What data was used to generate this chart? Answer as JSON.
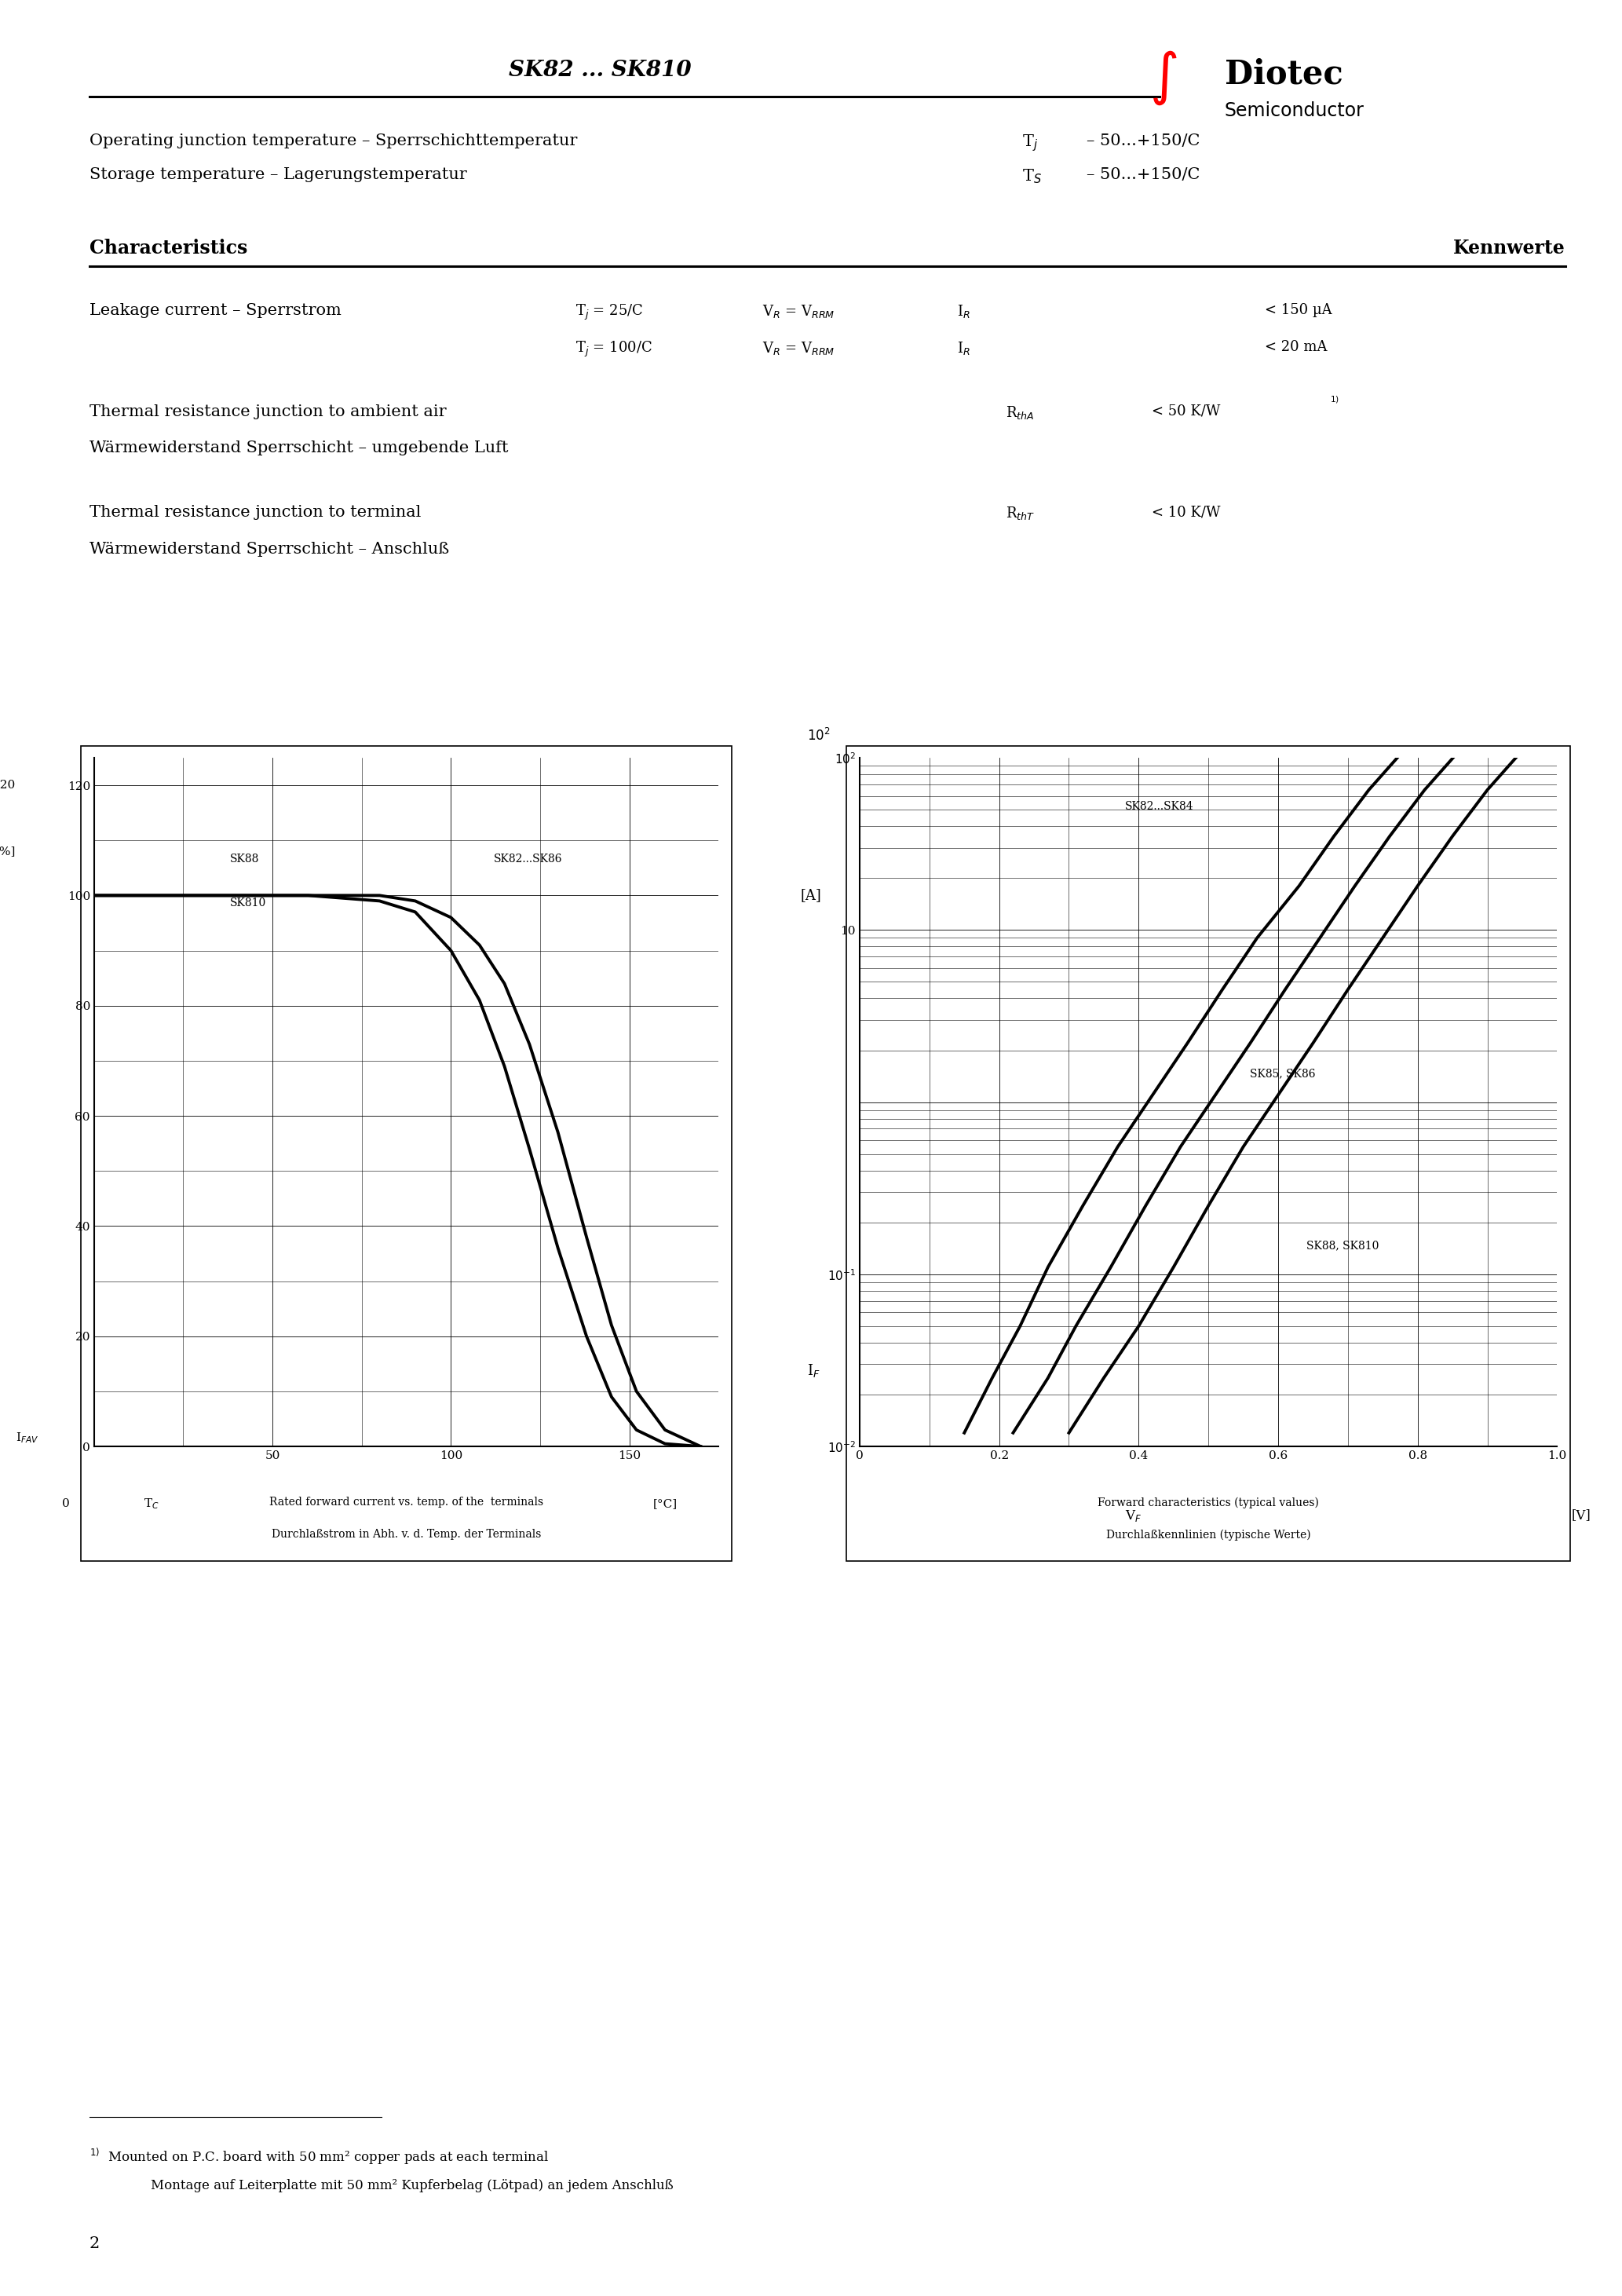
{
  "title": "SK82 ... SK810",
  "page_number": "2",
  "background_color": "#ffffff",
  "text_color": "#000000",
  "specs": [
    {
      "left": "Operating junction temperature – Sperrschichttemperatur",
      "symbol": "T$_j$",
      "value": "– 50...+150/C"
    },
    {
      "left": "Storage temperature – Lagerungstemperatur",
      "symbol": "T$_S$",
      "value": "– 50...+150/C"
    }
  ],
  "char_header_left": "Characteristics",
  "char_header_right": "Kennwerte",
  "characteristics": [
    {
      "name": "Leakage current – Sperrstrom",
      "conditions": [
        {
          "cond": "T$_j$ = 25/C",
          "cond2": "V$_R$ = V$_{RRM}$",
          "symbol": "I$_R$",
          "value": "< 150 µA"
        },
        {
          "cond": "T$_j$ = 100/C",
          "cond2": "V$_R$ = V$_{RRM}$",
          "symbol": "I$_R$",
          "value": "< 20 mA"
        }
      ]
    },
    {
      "name": "Thermal resistance junction to ambient air",
      "name2": "Wärmewiderstand Sperrschicht – umgebende Luft",
      "symbol": "R$_{thA}$",
      "value": "< 50 K/W",
      "superscript": "1)"
    },
    {
      "name": "Thermal resistance junction to terminal",
      "name2": "Wärmewiderstand Sperrschicht – Anschluß",
      "symbol": "R$_{thT}$",
      "value": "< 10 K/W",
      "superscript": ""
    }
  ],
  "chart1": {
    "title_bottom1": "Rated forward current vs. temp. of the  terminals",
    "title_bottom2": "Durchlaßstrom in Abh. v. d. Temp. der Terminals",
    "yticks": [
      0,
      20,
      40,
      60,
      80,
      100,
      120
    ],
    "ylim": [
      0,
      125
    ],
    "xlim": [
      0,
      175
    ],
    "major_xticks": [
      0,
      50,
      100,
      150
    ],
    "minor_xticks": [
      25,
      75,
      125
    ],
    "minor_yticks": [
      10,
      30,
      50,
      70,
      90,
      110
    ],
    "curves": [
      {
        "label": "SK82...SK86",
        "x": [
          0,
          30,
          60,
          80,
          90,
          100,
          108,
          115,
          122,
          130,
          138,
          145,
          152,
          160,
          170
        ],
        "y": [
          100,
          100,
          100,
          100,
          99,
          96,
          91,
          84,
          73,
          57,
          38,
          22,
          10,
          3,
          0
        ]
      },
      {
        "label": "SK88 / SK810",
        "x": [
          0,
          30,
          60,
          80,
          90,
          100,
          108,
          115,
          122,
          130,
          138,
          145,
          152,
          160,
          170
        ],
        "y": [
          100,
          100,
          100,
          99,
          97,
          90,
          81,
          69,
          54,
          36,
          20,
          9,
          3,
          0.5,
          0
        ]
      }
    ]
  },
  "chart2": {
    "title_bottom1": "Forward characteristics (typical values)",
    "title_bottom2": "Durchlaßkennlinien (typische Werte)",
    "xlim": [
      0,
      1.0
    ],
    "ylim": [
      0.01,
      100
    ],
    "major_xticks": [
      0.0,
      0.2,
      0.4,
      0.6,
      0.8,
      1.0
    ],
    "curves": [
      {
        "label": "SK82...SK84",
        "x": [
          0.15,
          0.19,
          0.23,
          0.27,
          0.32,
          0.37,
          0.42,
          0.47,
          0.52,
          0.57,
          0.63,
          0.68,
          0.73,
          0.78
        ],
        "y": [
          0.012,
          0.025,
          0.05,
          0.11,
          0.25,
          0.55,
          1.1,
          2.2,
          4.5,
          9,
          18,
          35,
          65,
          110
        ]
      },
      {
        "label": "SK85, SK86",
        "x": [
          0.22,
          0.27,
          0.31,
          0.36,
          0.41,
          0.46,
          0.51,
          0.56,
          0.61,
          0.66,
          0.71,
          0.76,
          0.81,
          0.86
        ],
        "y": [
          0.012,
          0.025,
          0.05,
          0.11,
          0.25,
          0.55,
          1.1,
          2.2,
          4.5,
          9,
          18,
          35,
          65,
          110
        ]
      },
      {
        "label": "SK88, SK810",
        "x": [
          0.3,
          0.35,
          0.4,
          0.45,
          0.5,
          0.55,
          0.6,
          0.65,
          0.7,
          0.75,
          0.8,
          0.85,
          0.9,
          0.95
        ],
        "y": [
          0.012,
          0.025,
          0.05,
          0.11,
          0.25,
          0.55,
          1.1,
          2.2,
          4.5,
          9,
          18,
          35,
          65,
          110
        ]
      }
    ]
  },
  "footnote_line1": "Mounted on P.C. board with 50 mm² copper pads at each terminal",
  "footnote_line2": "Montage auf Leiterplatte mit 50 mm² Kupferbelag (Lötpad) an jedem Anschluß"
}
